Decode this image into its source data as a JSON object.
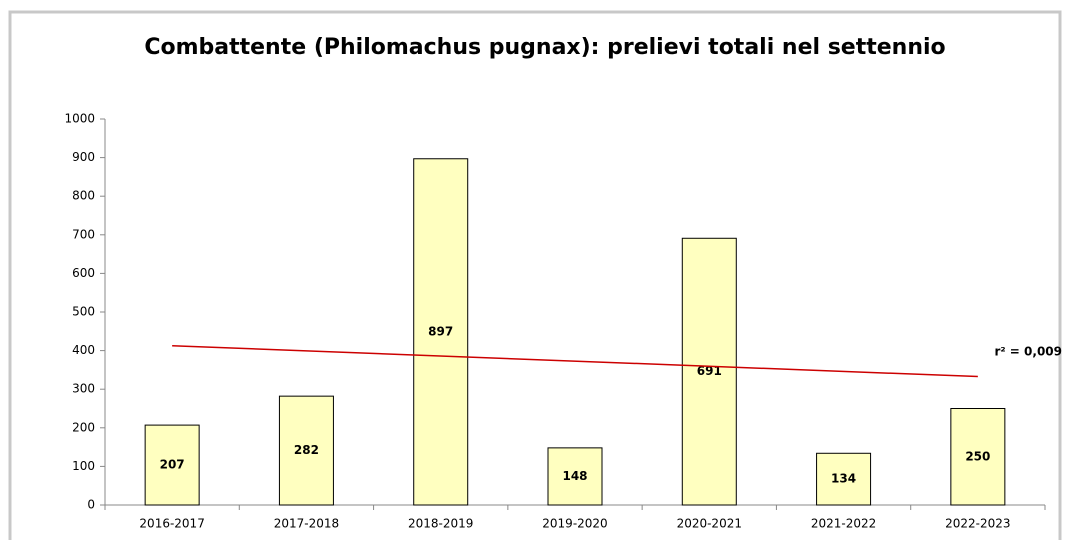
{
  "chart_data": {
    "type": "bar",
    "title": "Combattente (Philomachus pugnax): prelievi totali nel settennio",
    "categories": [
      "2016-2017",
      "2017-2018",
      "2018-2019",
      "2019-2020",
      "2020-2021",
      "2021-2022",
      "2022-2023"
    ],
    "values": [
      207,
      282,
      897,
      148,
      691,
      134,
      250
    ],
    "color": "#ffffc0",
    "ylim": [
      0,
      1000
    ],
    "yticks": [
      0,
      100,
      200,
      300,
      400,
      500,
      600,
      700,
      800,
      900,
      1000
    ],
    "grid": false,
    "trendline": {
      "type": "linear",
      "color": "#cc0000",
      "label": "r² = 0,009"
    }
  }
}
